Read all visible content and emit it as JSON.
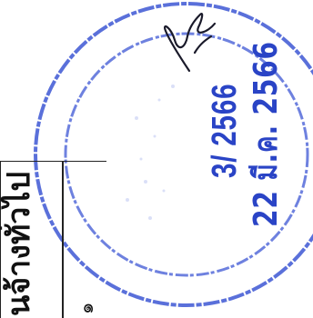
{
  "document": {
    "heading": "นจ้างทั่วไป",
    "item_number": "๑"
  },
  "stamp": {
    "received_number": "3/ 2566",
    "received_date": "22 มี.ค. 2566",
    "ink_color": "#2a44c6",
    "has_handwritten_signature": true
  }
}
